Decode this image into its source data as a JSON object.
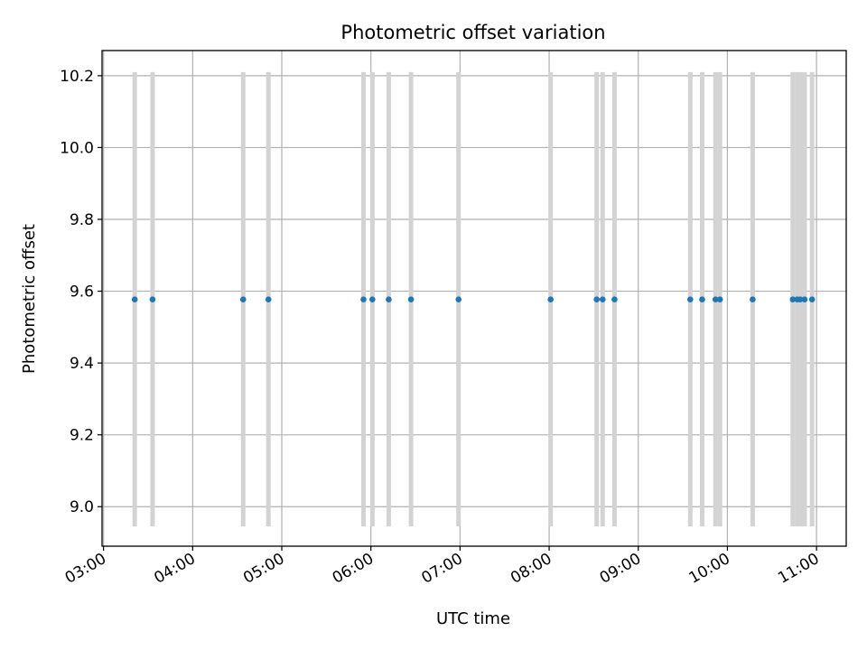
{
  "chart_data": {
    "type": "scatter",
    "title": "Photometric offset variation",
    "xlabel": "UTC time",
    "ylabel": "Photometric offset",
    "x_ticks": [
      "03:00",
      "04:00",
      "05:00",
      "06:00",
      "07:00",
      "08:00",
      "09:00",
      "10:00",
      "11:00"
    ],
    "y_ticks": [
      "9.0",
      "9.2",
      "9.4",
      "9.6",
      "9.8",
      "10.0",
      "10.2"
    ],
    "xlim": [
      "02:59",
      "11:20"
    ],
    "ylim": [
      8.89,
      10.27
    ],
    "grid": true,
    "bar_range": [
      8.945,
      10.21
    ],
    "points": {
      "color": "#1f77b4",
      "x": [
        "03:21",
        "03:33",
        "04:34",
        "04:51",
        "05:55",
        "06:01",
        "06:12",
        "06:27",
        "06:59",
        "08:01",
        "08:32",
        "08:36",
        "08:44",
        "09:35",
        "09:43",
        "09:52",
        "09:55",
        "10:17",
        "10:44",
        "10:47",
        "10:49",
        "10:52",
        "10:57"
      ],
      "y": [
        9.577,
        9.577,
        9.577,
        9.577,
        9.577,
        9.577,
        9.577,
        9.577,
        9.577,
        9.577,
        9.577,
        9.577,
        9.577,
        9.577,
        9.577,
        9.577,
        9.577,
        9.577,
        9.577,
        9.577,
        9.577,
        9.577,
        9.577
      ]
    },
    "bar_color": "#d3d3d3"
  }
}
